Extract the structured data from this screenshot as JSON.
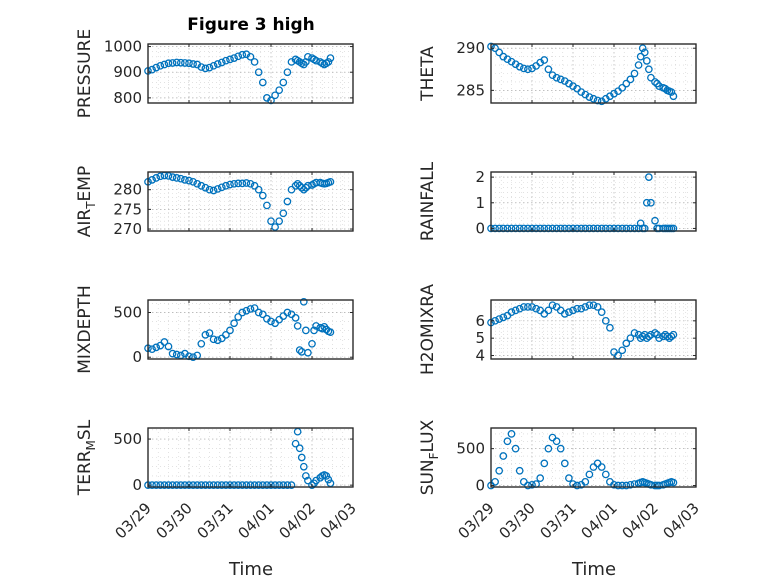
{
  "figure": {
    "title": "Figure 3 high",
    "xlabel": "Time"
  },
  "colors": {
    "marker": "#0072BD",
    "axis": "#262626",
    "grid": "#b0b0b0"
  },
  "chart_data": [
    {
      "type": "scatter",
      "ylabel": "PRESSURE",
      "ylabel_sub": "",
      "ylabel_tail": "",
      "ylim": [
        780,
        1010
      ],
      "yticks": [
        800,
        900,
        1000
      ],
      "yticklabels": [
        "800",
        "900",
        "1000"
      ],
      "xlim": [
        0,
        5
      ],
      "xticks": [
        0,
        1,
        2,
        3,
        4,
        5
      ],
      "xticklabels": [],
      "grid": true,
      "x": [
        0,
        0.1,
        0.2,
        0.3,
        0.4,
        0.5,
        0.6,
        0.7,
        0.8,
        0.9,
        1.0,
        1.1,
        1.2,
        1.3,
        1.4,
        1.5,
        1.6,
        1.7,
        1.8,
        1.9,
        2.0,
        2.1,
        2.2,
        2.3,
        2.4,
        2.5,
        2.6,
        2.7,
        2.8,
        2.9,
        3.0,
        3.1,
        3.2,
        3.3,
        3.4,
        3.5,
        3.6,
        3.65,
        3.7,
        3.75,
        3.8,
        3.85,
        3.9,
        4.0,
        4.05,
        4.1,
        4.2,
        4.25,
        4.3,
        4.35,
        4.4,
        4.45
      ],
      "y": [
        905,
        910,
        918,
        925,
        930,
        935,
        936,
        938,
        937,
        936,
        935,
        932,
        930,
        920,
        915,
        918,
        925,
        932,
        938,
        945,
        950,
        955,
        962,
        968,
        970,
        960,
        940,
        900,
        860,
        800,
        790,
        810,
        830,
        860,
        900,
        940,
        950,
        945,
        940,
        935,
        930,
        940,
        960,
        955,
        950,
        945,
        940,
        935,
        930,
        935,
        940,
        955
      ]
    },
    {
      "type": "scatter",
      "ylabel": "THETA",
      "ylabel_sub": "",
      "ylabel_tail": "",
      "ylim": [
        283.5,
        290.5
      ],
      "yticks": [
        285,
        290
      ],
      "yticklabels": [
        "285",
        "290"
      ],
      "xlim": [
        0,
        5
      ],
      "xticks": [
        0,
        1,
        2,
        3,
        4,
        5
      ],
      "xticklabels": [],
      "grid": true,
      "x": [
        0,
        0.1,
        0.2,
        0.3,
        0.4,
        0.5,
        0.6,
        0.7,
        0.8,
        0.9,
        1.0,
        1.1,
        1.2,
        1.3,
        1.4,
        1.5,
        1.6,
        1.7,
        1.8,
        1.9,
        2.0,
        2.1,
        2.2,
        2.3,
        2.4,
        2.5,
        2.6,
        2.7,
        2.8,
        2.9,
        3.0,
        3.1,
        3.2,
        3.3,
        3.4,
        3.5,
        3.6,
        3.65,
        3.7,
        3.75,
        3.8,
        3.85,
        3.9,
        4.0,
        4.05,
        4.1,
        4.2,
        4.25,
        4.3,
        4.35,
        4.4,
        4.45
      ],
      "y": [
        290.2,
        290,
        289.5,
        289,
        288.7,
        288.4,
        288.1,
        287.8,
        287.6,
        287.5,
        287.6,
        287.9,
        288.3,
        288.6,
        287.5,
        286.8,
        286.5,
        286.3,
        286.1,
        285.8,
        285.5,
        285.2,
        284.8,
        284.5,
        284.2,
        284,
        283.8,
        283.7,
        284,
        284.3,
        284.6,
        284.9,
        285.3,
        285.8,
        286.3,
        287,
        288,
        289,
        290,
        289.5,
        288.5,
        287.5,
        286.5,
        286,
        285.8,
        285.5,
        285.3,
        285.2,
        285.0,
        284.9,
        284.8,
        284.3
      ]
    },
    {
      "type": "scatter",
      "ylabel": "AIR",
      "ylabel_sub": "T",
      "ylabel_tail": "EMP",
      "ylim": [
        269.5,
        284.5
      ],
      "yticks": [
        270,
        275,
        280
      ],
      "yticklabels": [
        "270",
        "275",
        "280"
      ],
      "xlim": [
        0,
        5
      ],
      "xticks": [
        0,
        1,
        2,
        3,
        4,
        5
      ],
      "xticklabels": [],
      "grid": true,
      "x": [
        0,
        0.1,
        0.2,
        0.3,
        0.4,
        0.5,
        0.6,
        0.7,
        0.8,
        0.9,
        1.0,
        1.1,
        1.2,
        1.3,
        1.4,
        1.5,
        1.6,
        1.7,
        1.8,
        1.9,
        2.0,
        2.1,
        2.2,
        2.3,
        2.4,
        2.5,
        2.6,
        2.7,
        2.8,
        2.9,
        3.0,
        3.1,
        3.2,
        3.3,
        3.4,
        3.5,
        3.6,
        3.65,
        3.7,
        3.75,
        3.8,
        3.85,
        3.9,
        4.0,
        4.05,
        4.1,
        4.2,
        4.25,
        4.3,
        4.35,
        4.4,
        4.45
      ],
      "y": [
        282,
        282.5,
        283,
        283.4,
        283.6,
        283.5,
        283.2,
        283,
        282.8,
        282.5,
        282.3,
        282,
        281.5,
        281,
        280.5,
        280,
        279.8,
        280.2,
        280.6,
        281,
        281.3,
        281.5,
        281.6,
        281.6,
        281.7,
        281.5,
        281,
        280,
        278.5,
        276,
        272,
        270.5,
        272,
        274,
        277,
        280,
        281,
        281.5,
        281,
        280.5,
        280,
        280.5,
        281,
        281.2,
        281.5,
        281.8,
        281.8,
        281.6,
        281.5,
        281.6,
        281.8,
        282
      ]
    },
    {
      "type": "scatter",
      "ylabel": "RAINFALL",
      "ylabel_sub": "",
      "ylabel_tail": "",
      "ylim": [
        -0.1,
        2.2
      ],
      "yticks": [
        0,
        1,
        2
      ],
      "yticklabels": [
        "0",
        "1",
        "2"
      ],
      "xlim": [
        0,
        5
      ],
      "xticks": [
        0,
        1,
        2,
        3,
        4,
        5
      ],
      "xticklabels": [],
      "grid": true,
      "x": [
        0,
        0.1,
        0.2,
        0.3,
        0.4,
        0.5,
        0.6,
        0.7,
        0.8,
        0.9,
        1.0,
        1.1,
        1.2,
        1.3,
        1.4,
        1.5,
        1.6,
        1.7,
        1.8,
        1.9,
        2.0,
        2.1,
        2.2,
        2.3,
        2.4,
        2.5,
        2.6,
        2.7,
        2.8,
        2.9,
        3.0,
        3.1,
        3.2,
        3.3,
        3.4,
        3.5,
        3.6,
        3.65,
        3.7,
        3.75,
        3.8,
        3.85,
        3.9,
        4.0,
        4.05,
        4.1,
        4.2,
        4.25,
        4.3,
        4.35,
        4.4,
        4.45
      ],
      "y": [
        0,
        0,
        0,
        0,
        0,
        0,
        0,
        0,
        0,
        0,
        0,
        0,
        0,
        0,
        0,
        0,
        0,
        0,
        0,
        0,
        0,
        0,
        0,
        0,
        0,
        0,
        0,
        0,
        0,
        0,
        0,
        0,
        0,
        0,
        0,
        0,
        0,
        0.2,
        0,
        0,
        1.0,
        2.0,
        1.0,
        0.3,
        0,
        0,
        0,
        0,
        0,
        0,
        0,
        0
      ]
    },
    {
      "type": "scatter",
      "ylabel": "MIXDEPTH",
      "ylabel_sub": "",
      "ylabel_tail": "",
      "ylim": [
        -20,
        640
      ],
      "yticks": [
        0,
        500
      ],
      "yticklabels": [
        "0",
        "500"
      ],
      "xlim": [
        0,
        5
      ],
      "xticks": [
        0,
        1,
        2,
        3,
        4,
        5
      ],
      "xticklabels": [],
      "grid": true,
      "x": [
        0,
        0.1,
        0.2,
        0.3,
        0.4,
        0.5,
        0.6,
        0.7,
        0.8,
        0.9,
        1.0,
        1.1,
        1.2,
        1.3,
        1.4,
        1.5,
        1.6,
        1.7,
        1.8,
        1.9,
        2.0,
        2.1,
        2.2,
        2.3,
        2.4,
        2.5,
        2.6,
        2.7,
        2.8,
        2.9,
        3.0,
        3.1,
        3.2,
        3.3,
        3.4,
        3.5,
        3.6,
        3.65,
        3.7,
        3.75,
        3.8,
        3.85,
        3.9,
        4.0,
        4.05,
        4.1,
        4.2,
        4.25,
        4.3,
        4.35,
        4.4,
        4.45
      ],
      "y": [
        100,
        90,
        110,
        130,
        170,
        120,
        40,
        30,
        20,
        40,
        10,
        0,
        20,
        150,
        250,
        270,
        200,
        190,
        210,
        250,
        300,
        380,
        450,
        500,
        520,
        540,
        550,
        500,
        480,
        430,
        400,
        380,
        420,
        460,
        500,
        480,
        440,
        350,
        80,
        60,
        620,
        300,
        50,
        150,
        300,
        350,
        330,
        320,
        340,
        310,
        290,
        280
      ]
    },
    {
      "type": "scatter",
      "ylabel": "H2OMIXRA",
      "ylabel_sub": "",
      "ylabel_tail": "",
      "ylim": [
        3.8,
        7.2
      ],
      "yticks": [
        4,
        5,
        6
      ],
      "yticklabels": [
        "4",
        "5",
        "6"
      ],
      "xlim": [
        0,
        5
      ],
      "xticks": [
        0,
        1,
        2,
        3,
        4,
        5
      ],
      "xticklabels": [],
      "grid": true,
      "x": [
        0,
        0.1,
        0.2,
        0.3,
        0.4,
        0.5,
        0.6,
        0.7,
        0.8,
        0.9,
        1.0,
        1.1,
        1.2,
        1.3,
        1.4,
        1.5,
        1.6,
        1.7,
        1.8,
        1.9,
        2.0,
        2.1,
        2.2,
        2.3,
        2.4,
        2.5,
        2.6,
        2.7,
        2.8,
        2.9,
        3.0,
        3.1,
        3.2,
        3.3,
        3.4,
        3.5,
        3.6,
        3.65,
        3.7,
        3.75,
        3.8,
        3.85,
        3.9,
        4.0,
        4.05,
        4.1,
        4.2,
        4.25,
        4.3,
        4.35,
        4.4,
        4.45
      ],
      "y": [
        5.9,
        6.0,
        6.1,
        6.2,
        6.3,
        6.5,
        6.6,
        6.7,
        6.8,
        6.8,
        6.8,
        6.7,
        6.6,
        6.4,
        6.6,
        6.9,
        6.8,
        6.6,
        6.4,
        6.5,
        6.6,
        6.7,
        6.7,
        6.8,
        6.9,
        6.9,
        6.8,
        6.5,
        6.0,
        5.6,
        4.2,
        4.0,
        4.3,
        4.7,
        5.0,
        5.3,
        5.2,
        5.0,
        5.1,
        5.2,
        5.0,
        5.1,
        5.2,
        5.3,
        5.2,
        5.0,
        5.1,
        5.2,
        5.1,
        5.0,
        5.1,
        5.2
      ]
    },
    {
      "type": "scatter",
      "ylabel": "TERR",
      "ylabel_sub": "M",
      "ylabel_tail": "SL",
      "ylim": [
        -20,
        620
      ],
      "yticks": [
        0,
        500
      ],
      "yticklabels": [
        "0",
        "500"
      ],
      "xlim": [
        0,
        5
      ],
      "xticks": [
        0,
        1,
        2,
        3,
        4,
        5
      ],
      "xticklabels": [
        "03/29",
        "03/30",
        "03/31",
        "04/01",
        "04/02",
        "04/03"
      ],
      "grid": true,
      "x": [
        0,
        0.1,
        0.2,
        0.3,
        0.4,
        0.5,
        0.6,
        0.7,
        0.8,
        0.9,
        1.0,
        1.1,
        1.2,
        1.3,
        1.4,
        1.5,
        1.6,
        1.7,
        1.8,
        1.9,
        2.0,
        2.1,
        2.2,
        2.3,
        2.4,
        2.5,
        2.6,
        2.7,
        2.8,
        2.9,
        3.0,
        3.1,
        3.2,
        3.3,
        3.4,
        3.5,
        3.6,
        3.65,
        3.7,
        3.75,
        3.8,
        3.85,
        3.9,
        4.0,
        4.05,
        4.1,
        4.2,
        4.25,
        4.3,
        4.35,
        4.4,
        4.45
      ],
      "y": [
        0,
        0,
        0,
        0,
        0,
        0,
        0,
        0,
        0,
        0,
        0,
        0,
        0,
        0,
        0,
        0,
        0,
        0,
        0,
        0,
        0,
        0,
        0,
        0,
        0,
        0,
        0,
        0,
        0,
        0,
        0,
        0,
        0,
        0,
        0,
        0,
        450,
        580,
        400,
        300,
        200,
        100,
        50,
        0,
        20,
        50,
        80,
        100,
        110,
        100,
        60,
        20
      ]
    },
    {
      "type": "scatter",
      "ylabel": "SUN",
      "ylabel_sub": "F",
      "ylabel_tail": "LUX",
      "ylim": [
        -20,
        780
      ],
      "yticks": [
        0,
        500
      ],
      "yticklabels": [
        "0",
        "500"
      ],
      "xlim": [
        0,
        5
      ],
      "xticks": [
        0,
        1,
        2,
        3,
        4,
        5
      ],
      "xticklabels": [
        "03/29",
        "03/30",
        "03/31",
        "04/01",
        "04/02",
        "04/03"
      ],
      "grid": true,
      "x": [
        0,
        0.1,
        0.2,
        0.3,
        0.4,
        0.5,
        0.6,
        0.7,
        0.8,
        0.9,
        1.0,
        1.1,
        1.2,
        1.3,
        1.4,
        1.5,
        1.6,
        1.7,
        1.8,
        1.9,
        2.0,
        2.1,
        2.2,
        2.3,
        2.4,
        2.5,
        2.6,
        2.7,
        2.8,
        2.9,
        3.0,
        3.1,
        3.2,
        3.3,
        3.4,
        3.5,
        3.6,
        3.65,
        3.7,
        3.75,
        3.8,
        3.85,
        3.9,
        4.0,
        4.05,
        4.1,
        4.2,
        4.25,
        4.3,
        4.35,
        4.4,
        4.45
      ],
      "y": [
        0,
        50,
        200,
        400,
        600,
        700,
        500,
        200,
        50,
        0,
        10,
        20,
        100,
        300,
        500,
        650,
        600,
        500,
        300,
        100,
        20,
        0,
        10,
        50,
        150,
        250,
        300,
        250,
        150,
        50,
        10,
        0,
        0,
        0,
        10,
        20,
        30,
        40,
        50,
        40,
        30,
        20,
        10,
        0,
        0,
        0,
        10,
        20,
        30,
        40,
        50,
        40
      ]
    }
  ]
}
